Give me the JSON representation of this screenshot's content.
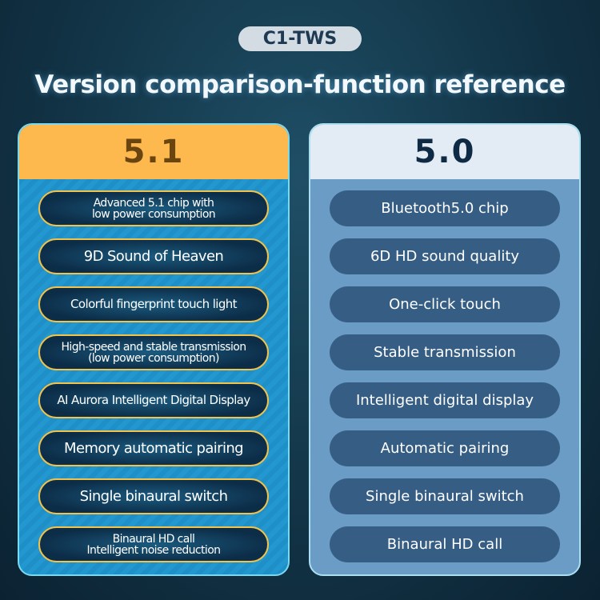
{
  "tag": "C1-TWS",
  "headline": "Version comparison-function reference",
  "left": {
    "title": "5.1",
    "colors": {
      "header": "#fdb94e",
      "border": "#f2c24a"
    },
    "items": [
      "Advanced 5.1 chip with\nlow power consumption",
      "9D Sound of Heaven",
      "Colorful fingerprint touch light",
      "High-speed and stable transmission\n(low power consumption)",
      "AI Aurora Intelligent Digital Display",
      "Memory automatic pairing",
      "Single binaural switch",
      "Binaural HD call\nIntelligent noise reduction"
    ]
  },
  "right": {
    "title": "5.0",
    "colors": {
      "header": "#e3ecf4",
      "pill": "#365e84"
    },
    "items": [
      "Bluetooth5.0 chip",
      "6D HD sound quality",
      "One-click touch",
      "Stable transmission",
      "Intelligent digital display",
      "Automatic pairing",
      "Single binaural switch",
      "Binaural HD call"
    ]
  }
}
